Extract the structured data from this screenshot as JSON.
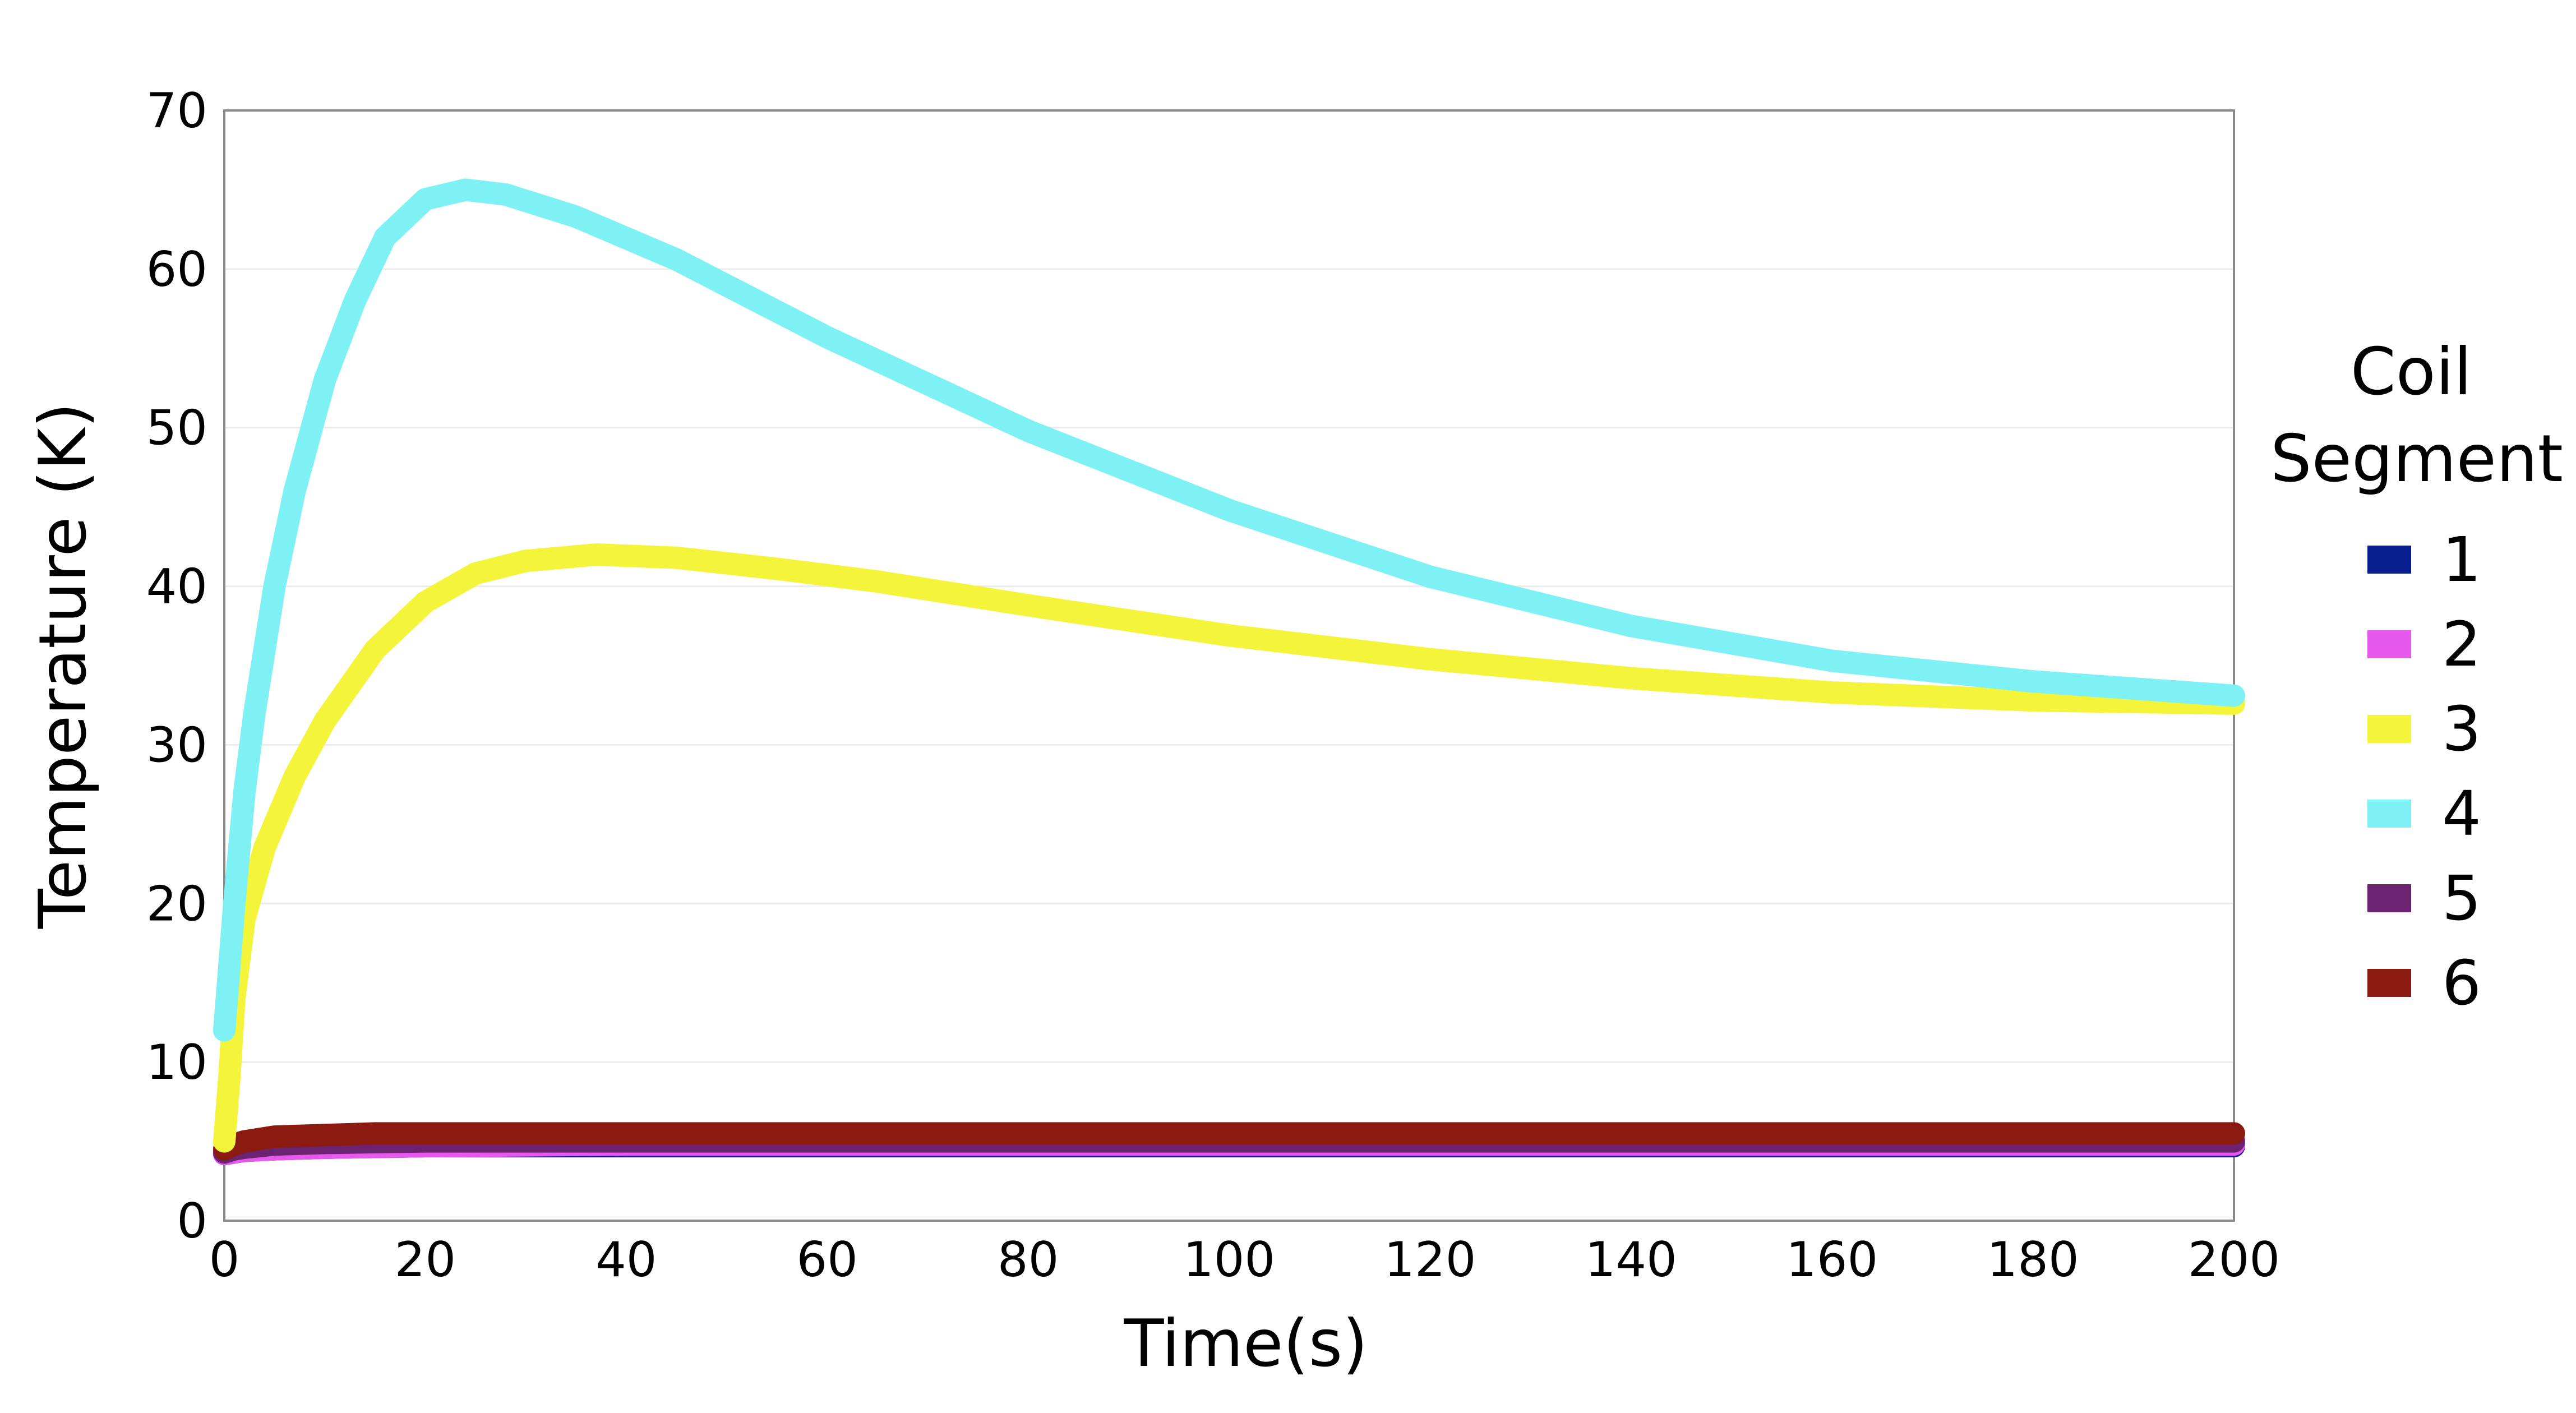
{
  "chart_data": {
    "type": "line",
    "title": "",
    "xlabel": "Time(s)",
    "ylabel": "Temperature (K)",
    "xlim": [
      0,
      200
    ],
    "ylim": [
      0,
      70
    ],
    "xticks": [
      0,
      20,
      40,
      60,
      80,
      100,
      120,
      140,
      160,
      180,
      200
    ],
    "yticks": [
      0,
      10,
      20,
      30,
      40,
      50,
      60,
      70
    ],
    "grid": true,
    "legend": {
      "title_lines": [
        "Coil",
        "Segment"
      ],
      "placement": "right"
    },
    "series": [
      {
        "name": "1",
        "color": "#0a1f8f",
        "x": [
          0,
          1,
          2,
          5,
          10,
          20,
          40,
          80,
          120,
          160,
          200
        ],
        "y": [
          4.2,
          4.3,
          4.4,
          4.5,
          4.6,
          4.7,
          4.7,
          4.7,
          4.7,
          4.7,
          4.7
        ]
      },
      {
        "name": "2",
        "color": "#e659ec",
        "x": [
          0,
          1,
          2,
          5,
          10,
          20,
          40,
          80,
          120,
          160,
          200
        ],
        "y": [
          4.2,
          4.3,
          4.4,
          4.5,
          4.6,
          4.7,
          4.8,
          4.8,
          4.8,
          4.8,
          4.8
        ]
      },
      {
        "name": "3",
        "color": "#f4f43a",
        "x": [
          0,
          0.5,
          1,
          2,
          4,
          7,
          10,
          15,
          20,
          25,
          30,
          37,
          45,
          55,
          65,
          80,
          100,
          120,
          140,
          160,
          180,
          200
        ],
        "y": [
          5,
          9,
          14,
          19,
          23.5,
          28,
          31.5,
          36,
          39,
          40.8,
          41.6,
          42,
          41.8,
          41.1,
          40.3,
          38.8,
          36.9,
          35.4,
          34.2,
          33.3,
          32.8,
          32.6
        ]
      },
      {
        "name": "4",
        "color": "#7ef1f4",
        "x": [
          0,
          0.5,
          1,
          2,
          3,
          5,
          7,
          10,
          13,
          16,
          20,
          24,
          28,
          35,
          45,
          60,
          80,
          100,
          120,
          140,
          160,
          180,
          200
        ],
        "y": [
          12,
          16,
          20,
          27,
          32,
          40,
          46,
          53,
          58,
          62,
          64.4,
          65,
          64.7,
          63.3,
          60.6,
          55.7,
          49.8,
          44.8,
          40.6,
          37.5,
          35.3,
          34,
          33.1
        ]
      },
      {
        "name": "5",
        "color": "#6b2371",
        "x": [
          0,
          1,
          2,
          5,
          10,
          20,
          40,
          80,
          120,
          160,
          200
        ],
        "y": [
          4.3,
          4.5,
          4.6,
          4.8,
          4.9,
          5,
          5,
          5,
          5,
          5,
          5
        ]
      },
      {
        "name": "6",
        "color": "#8b1a10",
        "x": [
          0,
          1,
          2,
          5,
          10,
          15,
          20,
          40,
          80,
          120,
          160,
          200
        ],
        "y": [
          4.5,
          4.8,
          5,
          5.3,
          5.4,
          5.5,
          5.5,
          5.5,
          5.5,
          5.5,
          5.5,
          5.5
        ]
      }
    ]
  }
}
